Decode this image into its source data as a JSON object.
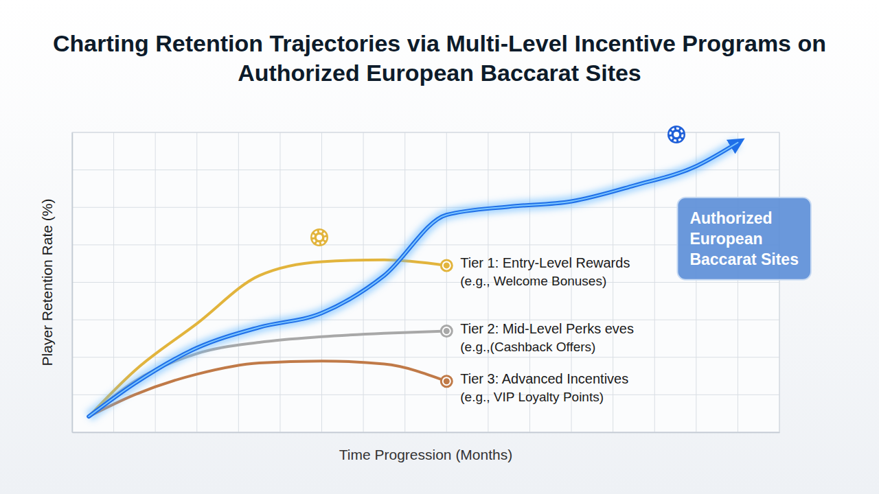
{
  "chart_data": {
    "type": "line",
    "title": "Charting Retention Trajectories via Multi-Level Incentive Programs on Authorized European Baccarat Sites",
    "x_label": "Time Progression (Months)",
    "y_label": "Player Retention Rate (%)",
    "x": [
      0.4,
      1.5,
      3,
      4.5,
      6,
      7.5,
      9,
      10.5,
      12,
      13.5,
      15,
      16
    ],
    "series": [
      {
        "name": "Authorized European Baccarat Sites",
        "color": "#1f6fe8",
        "marker": "arrow",
        "values": [
          4.2,
          13,
          22.5,
          28,
          31.8,
          41.8,
          58,
          60.2,
          61.6,
          65.8,
          71,
          77.3
        ]
      },
      {
        "name": "Tier 1: Entry-Level Rewards",
        "detail": "(e.g., Welcome Bonuses)",
        "color": "#e2b43c",
        "marker": "circle",
        "values": [
          4.2,
          16.4,
          29,
          41.8,
          45.5,
          46,
          44.5,
          null,
          null,
          null,
          null,
          null
        ]
      },
      {
        "name": "Tier 2: Mid-Level Perks eves",
        "detail": "(e.g.,(Cashback Offers)",
        "color": "#a8a8a8",
        "marker": "circle",
        "values": [
          4.2,
          13.6,
          21,
          24,
          25.5,
          26.4,
          27,
          null,
          null,
          null,
          null,
          null
        ]
      },
      {
        "name": "Tier 3: Advanced Incentives",
        "detail": "(e.g., VIP Loyalty Points)",
        "color": "#c07a48",
        "marker": "circle",
        "values": [
          4.2,
          10,
          15.5,
          18.5,
          19,
          18.2,
          13.6,
          null,
          null,
          null,
          null,
          null
        ]
      }
    ],
    "xlim": [
      0,
      17
    ],
    "ylim": [
      0,
      80
    ],
    "xticks": [
      0,
      1,
      2,
      3,
      4,
      5,
      6,
      7,
      8,
      9,
      10,
      11,
      12,
      13,
      14,
      15,
      16,
      17
    ],
    "yticks": [
      0,
      10,
      20,
      30,
      40,
      50,
      60,
      70,
      80
    ],
    "grid": true,
    "tick_labels": false
  }
}
